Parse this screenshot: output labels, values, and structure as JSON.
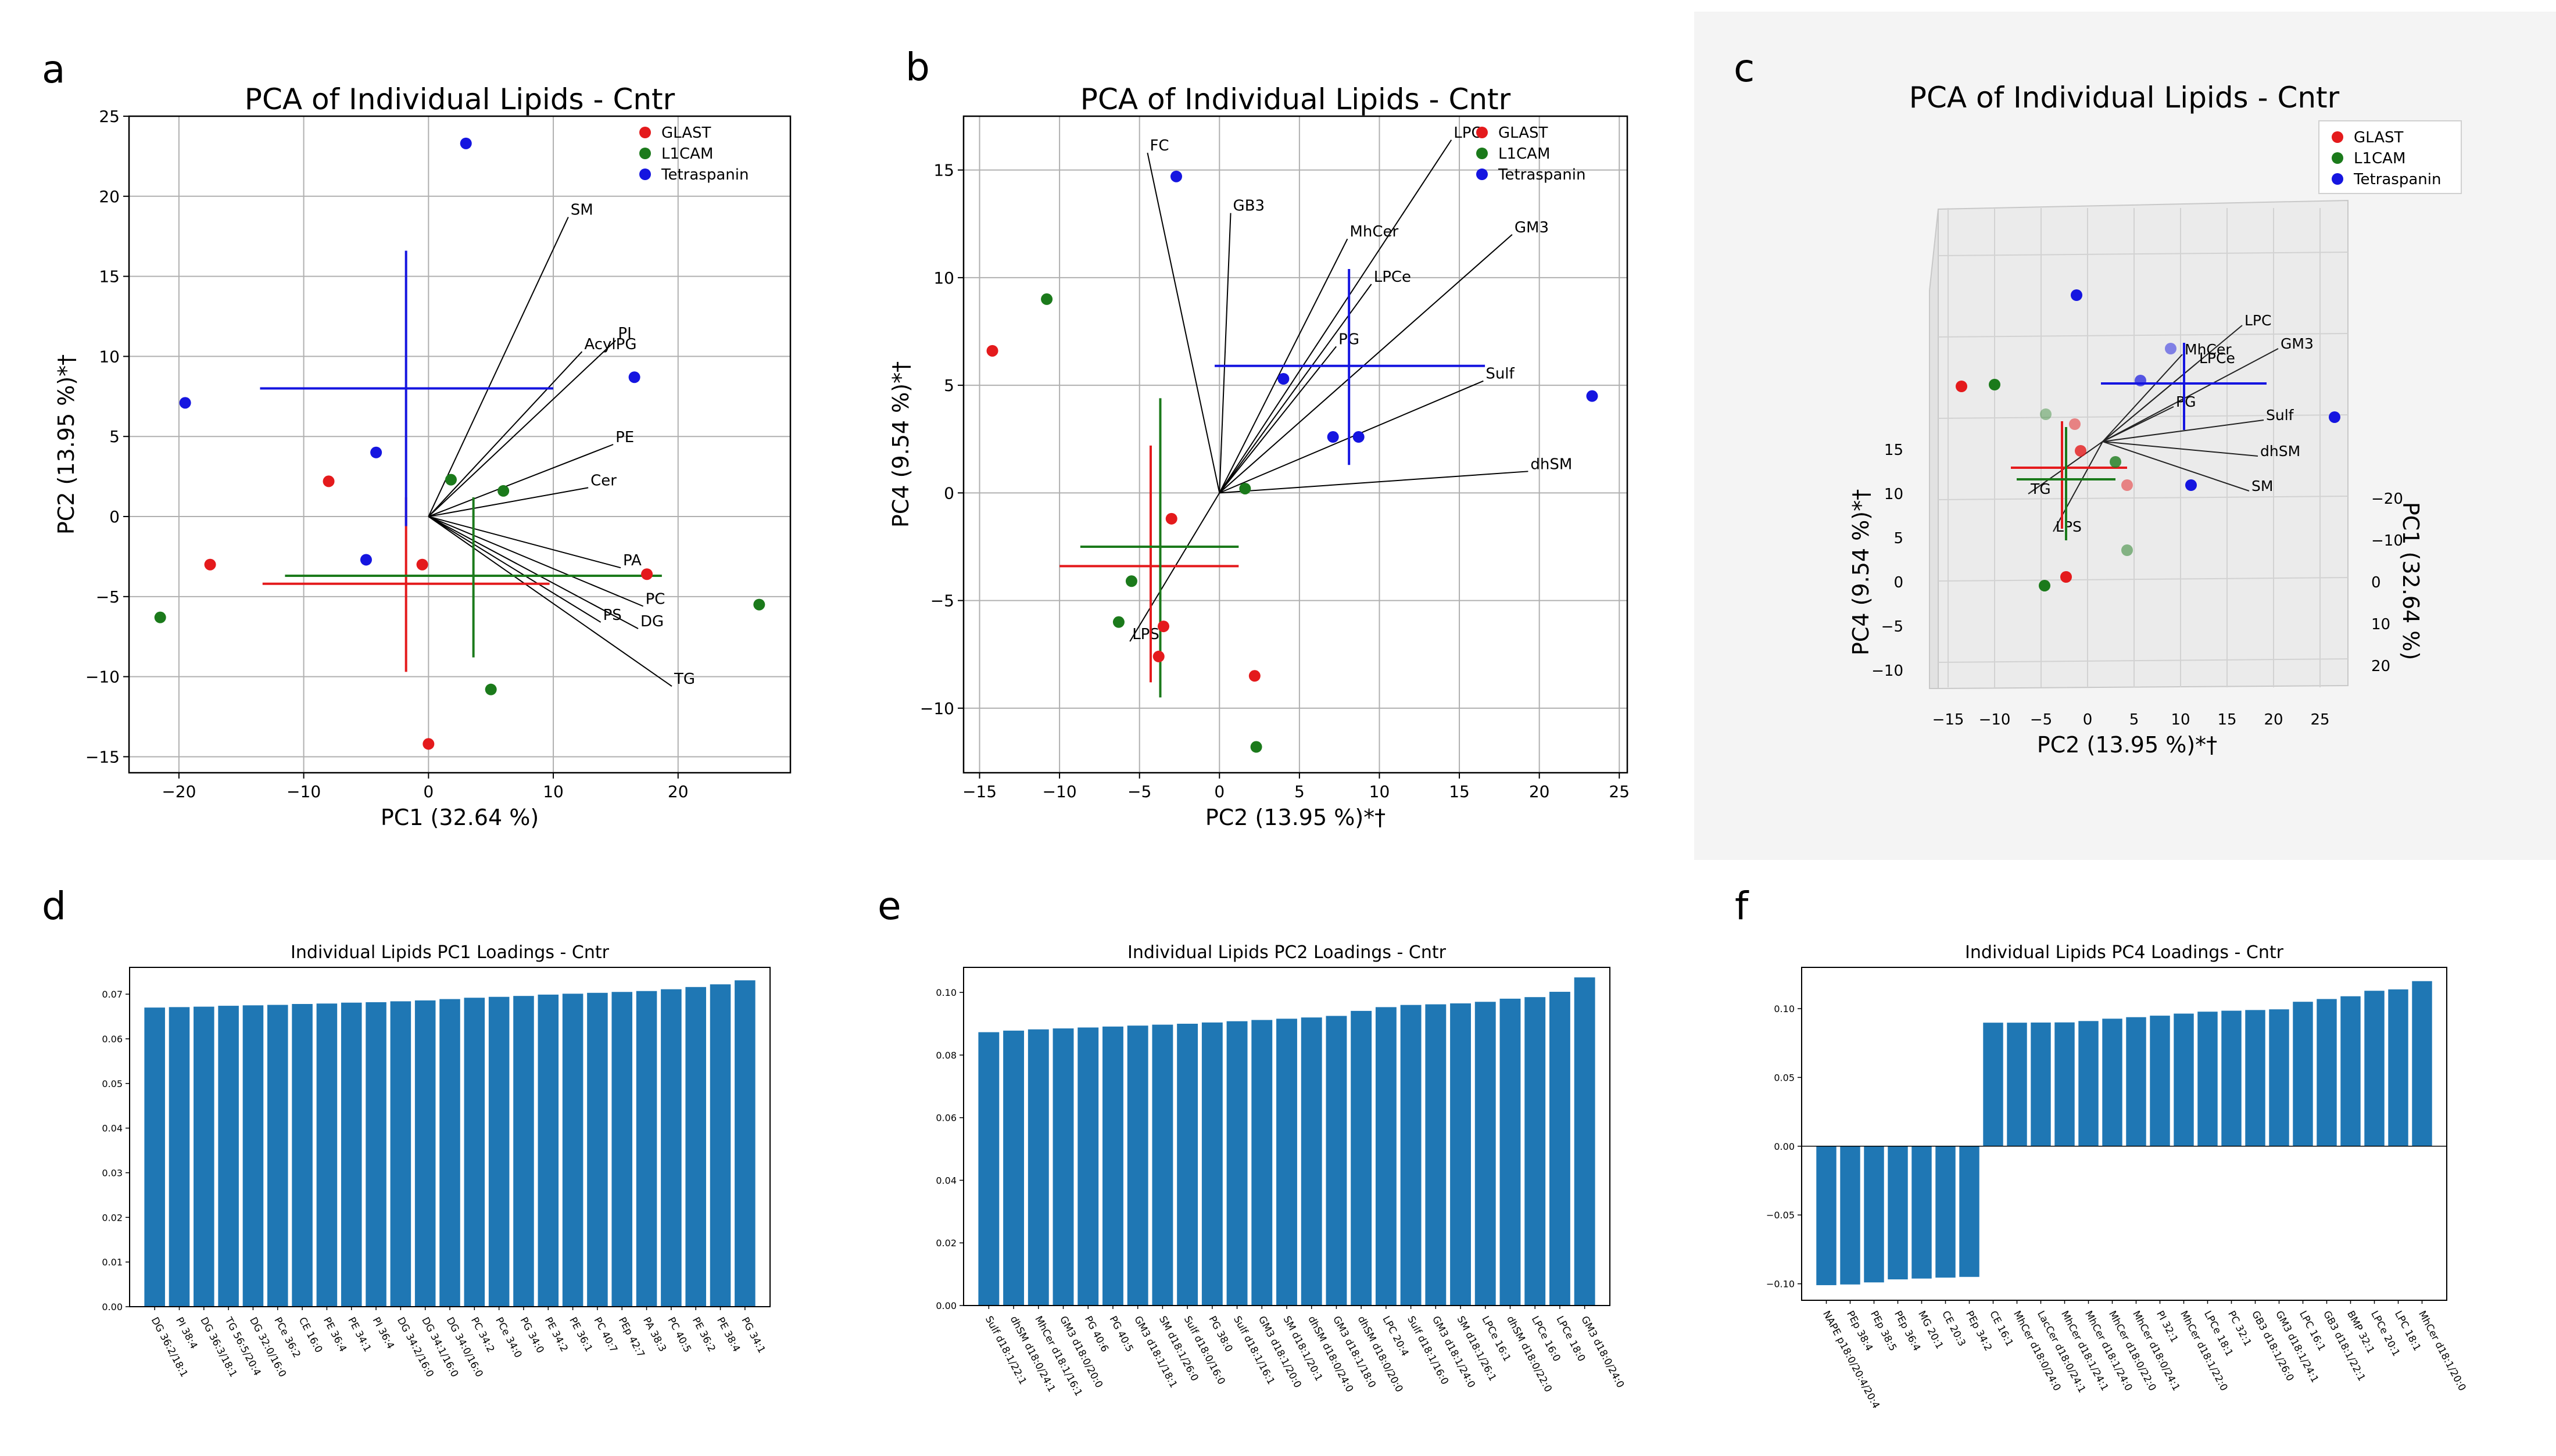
{
  "panel_letters": [
    "a",
    "b",
    "c",
    "d",
    "e",
    "f"
  ],
  "colors": {
    "GLAST": "#e41a1c",
    "L1CAM": "#1b7a1b",
    "Tetraspanin": "#1515e0",
    "bar": "#1f77b4",
    "vector": "#000000"
  },
  "chart_data": [
    {
      "id": "a",
      "type": "scatter",
      "title": "PCA of Individual Lipids - Cntr",
      "xlabel": "PC1 (32.64 %)",
      "ylabel": "PC2 (13.95 %)*†",
      "xlim": [
        -24,
        29
      ],
      "ylim": [
        -16,
        25
      ],
      "xticks": [
        -20,
        -10,
        0,
        10,
        20
      ],
      "yticks": [
        -15,
        -10,
        -5,
        0,
        5,
        10,
        15,
        20,
        25
      ],
      "legend": [
        "GLAST",
        "L1CAM",
        "Tetraspanin"
      ],
      "legend_position": "top-right",
      "series": [
        {
          "name": "GLAST",
          "points": [
            [
              -17.5,
              -3
            ],
            [
              -8,
              2.2
            ],
            [
              -0.5,
              -3
            ],
            [
              17.5,
              -3.6
            ],
            [
              0,
              -14.2
            ]
          ]
        },
        {
          "name": "L1CAM",
          "points": [
            [
              -21.5,
              -6.3
            ],
            [
              1.8,
              2.3
            ],
            [
              6,
              1.6
            ],
            [
              26.5,
              -5.5
            ],
            [
              5,
              -10.8
            ]
          ]
        },
        {
          "name": "Tetraspanin",
          "points": [
            [
              -19.5,
              7.1
            ],
            [
              -4.2,
              4
            ],
            [
              -5,
              -2.7
            ],
            [
              3,
              23.3
            ],
            [
              16.5,
              8.7
            ]
          ]
        }
      ],
      "crosses": [
        {
          "name": "GLAST",
          "center": [
            -1.8,
            -4.2
          ],
          "x_range": [
            -13.3,
            9.7
          ],
          "y_range": [
            -9.7,
            1.2
          ]
        },
        {
          "name": "L1CAM",
          "center": [
            3.6,
            -3.7
          ],
          "x_range": [
            -11.5,
            18.7
          ],
          "y_range": [
            -8.8,
            1.2
          ]
        },
        {
          "name": "Tetraspanin",
          "center": [
            -1.8,
            8
          ],
          "x_range": [
            -13.5,
            10
          ],
          "y_range": [
            -0.6,
            16.6
          ]
        }
      ],
      "vectors": [
        {
          "label": "SM",
          "end": [
            11.2,
            18.7
          ]
        },
        {
          "label": "PI",
          "end": [
            15,
            11
          ]
        },
        {
          "label": "AcylPG",
          "end": [
            12.3,
            10.3
          ]
        },
        {
          "label": "PE",
          "end": [
            14.8,
            4.5
          ]
        },
        {
          "label": "Cer",
          "end": [
            12.8,
            1.8
          ]
        },
        {
          "label": "PA",
          "end": [
            15.4,
            -3.2
          ]
        },
        {
          "label": "PC",
          "end": [
            17.2,
            -5.6
          ]
        },
        {
          "label": "DG",
          "end": [
            16.8,
            -7
          ]
        },
        {
          "label": "PS",
          "end": [
            13.8,
            -6.6
          ]
        },
        {
          "label": "TG",
          "end": [
            19.5,
            -10.6
          ]
        }
      ]
    },
    {
      "id": "b",
      "type": "scatter",
      "title": "PCA of Individual Lipids - Cntr",
      "xlabel": "PC2 (13.95 %)*†",
      "ylabel": "PC4 (9.54 %)*†",
      "xlim": [
        -16,
        25.5
      ],
      "ylim": [
        -13,
        17.5
      ],
      "xticks": [
        -15,
        -10,
        -5,
        0,
        5,
        10,
        15,
        20,
        25
      ],
      "yticks": [
        -10,
        -5,
        0,
        5,
        10,
        15
      ],
      "legend": [
        "GLAST",
        "L1CAM",
        "Tetraspanin"
      ],
      "legend_position": "top-right",
      "series": [
        {
          "name": "GLAST",
          "points": [
            [
              -14.2,
              6.6
            ],
            [
              -3,
              -1.2
            ],
            [
              -3.5,
              -6.2
            ],
            [
              -3.8,
              -7.6
            ],
            [
              2.2,
              -8.5
            ]
          ]
        },
        {
          "name": "L1CAM",
          "points": [
            [
              -10.8,
              9
            ],
            [
              -5.5,
              -4.1
            ],
            [
              -6.3,
              -6
            ],
            [
              1.6,
              0.2
            ],
            [
              2.3,
              -11.8
            ]
          ]
        },
        {
          "name": "Tetraspanin",
          "points": [
            [
              -2.7,
              14.7
            ],
            [
              4,
              5.3
            ],
            [
              7.1,
              2.6
            ],
            [
              8.7,
              2.6
            ],
            [
              23.3,
              4.5
            ]
          ]
        }
      ],
      "crosses": [
        {
          "name": "GLAST",
          "center": [
            -4.3,
            -3.4
          ],
          "x_range": [
            -10,
            1.2
          ],
          "y_range": [
            -8.8,
            2.2
          ]
        },
        {
          "name": "L1CAM",
          "center": [
            -3.7,
            -2.5
          ],
          "x_range": [
            -8.7,
            1.2
          ],
          "y_range": [
            -9.5,
            4.4
          ]
        },
        {
          "name": "Tetraspanin",
          "center": [
            8.1,
            5.9
          ],
          "x_range": [
            -0.3,
            16.6
          ],
          "y_range": [
            1.3,
            10.4
          ]
        }
      ],
      "vectors": [
        {
          "label": "FC",
          "end": [
            -4.5,
            15.8
          ]
        },
        {
          "label": "GB3",
          "end": [
            0.7,
            13
          ]
        },
        {
          "label": "LPC",
          "end": [
            14.5,
            16.4
          ]
        },
        {
          "label": "MhCer",
          "end": [
            8,
            11.8
          ]
        },
        {
          "label": "LPCe",
          "end": [
            9.5,
            9.7
          ]
        },
        {
          "label": "GM3",
          "end": [
            18.3,
            12
          ]
        },
        {
          "label": "PG",
          "end": [
            7.3,
            6.8
          ]
        },
        {
          "label": "Sulf",
          "end": [
            16.5,
            5.2
          ]
        },
        {
          "label": "dhSM",
          "end": [
            19.3,
            1
          ]
        },
        {
          "label": "LPS",
          "end": [
            -5.6,
            -6.9
          ]
        }
      ]
    },
    {
      "id": "c",
      "type": "scatter",
      "title": "PCA of Individual Lipids - Cntr",
      "xlabel": "PC2 (13.95 %)*†",
      "ylabel": "PC4 (9.54 %)*†",
      "zlabel": "PC1 (32.64 %)",
      "xlim": [
        -17,
        26
      ],
      "xticks": [
        -15,
        -10,
        -5,
        0,
        5,
        10,
        15,
        20,
        25
      ],
      "yticks": [
        -10,
        -5,
        0,
        5,
        10,
        15
      ],
      "zticks": [
        -20,
        -10,
        0,
        10,
        20
      ],
      "legend": [
        "GLAST",
        "L1CAM",
        "Tetraspanin"
      ],
      "legend_position": "top-right",
      "vector_labels": [
        "LPC",
        "MhCer",
        "LPCe",
        "GM3",
        "PG",
        "Sulf",
        "dhSM",
        "SM",
        "TG",
        "LPS"
      ]
    },
    {
      "id": "d",
      "type": "bar",
      "title": "Individual Lipids PC1 Loadings - Cntr",
      "ylim": [
        0,
        0.076
      ],
      "yticks": [
        "0.00",
        "0.01",
        "0.02",
        "0.03",
        "0.04",
        "0.05",
        "0.06",
        "0.07"
      ],
      "categories": [
        "DG 36:2/18:1",
        "PI 38:4",
        "DG 36:3/18:1",
        "TG 56:5/20:4",
        "DG 32:0/16:0",
        "PCe 36:2",
        "CE 16:0",
        "PE 36:4",
        "PE 34:1",
        "PI 36:4",
        "DG 34:2/16:0",
        "DG 34:1/16:0",
        "DG 34:0/16:0",
        "PC 34:2",
        "PCe 34:0",
        "PG 34:0",
        "PE 34:2",
        "PE 36:1",
        "PC 40:7",
        "PEp 42:7",
        "PA 38:3",
        "PC 40:5",
        "PE 36:2",
        "PE 38:4",
        "PG 34:1"
      ],
      "values": [
        0.067,
        0.0671,
        0.0672,
        0.0674,
        0.0675,
        0.0676,
        0.0678,
        0.0679,
        0.0681,
        0.0682,
        0.0684,
        0.0686,
        0.0689,
        0.0692,
        0.0694,
        0.0696,
        0.0699,
        0.0701,
        0.0703,
        0.0705,
        0.0707,
        0.0711,
        0.0716,
        0.0722,
        0.0731
      ]
    },
    {
      "id": "e",
      "type": "bar",
      "title": "Individual Lipids PC2 Loadings - Cntr",
      "ylim": [
        0,
        0.108
      ],
      "yticks": [
        "0.00",
        "0.02",
        "0.04",
        "0.06",
        "0.08",
        "0.10"
      ],
      "categories": [
        "Sulf d18:1/22:1",
        "dhSM d18:0/24:1",
        "MhCer d18:1/16:1",
        "GM3 d18:0/20:0",
        "PG 40:6",
        "PG 40:5",
        "GM3 d18:1/18:1",
        "SM d18:1/26:0",
        "Sulf d18:0/16:0",
        "PG 38:0",
        "Sulf d18:1/16:1",
        "GM3 d18:1/20:0",
        "SM d18:1/20:1",
        "dhSM d18:0/24:0",
        "GM3 d18:1/18:0",
        "dhSM d18:0/20:0",
        "LPC 20:4",
        "Sulf d18:1/16:0",
        "GM3 d18:1/24:0",
        "SM d18:1/26:1",
        "LPCe 16:1",
        "dhSM d18:0/22:0",
        "LPCe 16:0",
        "LPCe 18:0",
        "GM3 d18:0/24:0"
      ],
      "values": [
        0.0873,
        0.0878,
        0.0882,
        0.0885,
        0.0888,
        0.0891,
        0.0894,
        0.0897,
        0.09,
        0.0904,
        0.0908,
        0.0912,
        0.0916,
        0.092,
        0.0925,
        0.0941,
        0.0953,
        0.096,
        0.0962,
        0.0965,
        0.097,
        0.098,
        0.0985,
        0.1002,
        0.1048
      ]
    },
    {
      "id": "f",
      "type": "bar",
      "title": "Individual Lipids PC4 Loadings - Cntr",
      "ylim": [
        -0.112,
        0.13
      ],
      "yticks": [
        "0.10",
        "0.05",
        "0.00",
        "−0.05",
        "−0.10"
      ],
      "categories": [
        "NAPE p18:0/20:4/20:4",
        "PEp 38:4",
        "PEp 38:5",
        "PEp 36:4",
        "MG 20:1",
        "CE 20:3",
        "PEp 34:2",
        "CE 16:1",
        "MhCer d18:0/24:0",
        "LacCer d18:0/24:1",
        "MhCer d18:1/24:1",
        "MhCer d18:1/24:0",
        "MhCer d18:0/22:0",
        "MhCer d18:0/24:1",
        "PI 32:1",
        "MhCer d18:1/22:0",
        "LPCe 18:1",
        "PC 32:1",
        "GB3 d18:1/26:0",
        "GM3 d18:1/24:1",
        "LPC 16:1",
        "GB3 d18:1/22:1",
        "BMP 32:1",
        "LPCe 20:1",
        "LPC 18:1",
        "MhCer d18:1/20:0"
      ],
      "values": [
        -0.101,
        -0.1005,
        -0.099,
        -0.0968,
        -0.0962,
        -0.0955,
        -0.095,
        0.0898,
        0.0898,
        0.0899,
        0.09,
        0.091,
        0.0927,
        0.0938,
        0.0949,
        0.0964,
        0.0978,
        0.0985,
        0.099,
        0.0995,
        0.105,
        0.107,
        0.109,
        0.113,
        0.114,
        0.12
      ]
    }
  ]
}
